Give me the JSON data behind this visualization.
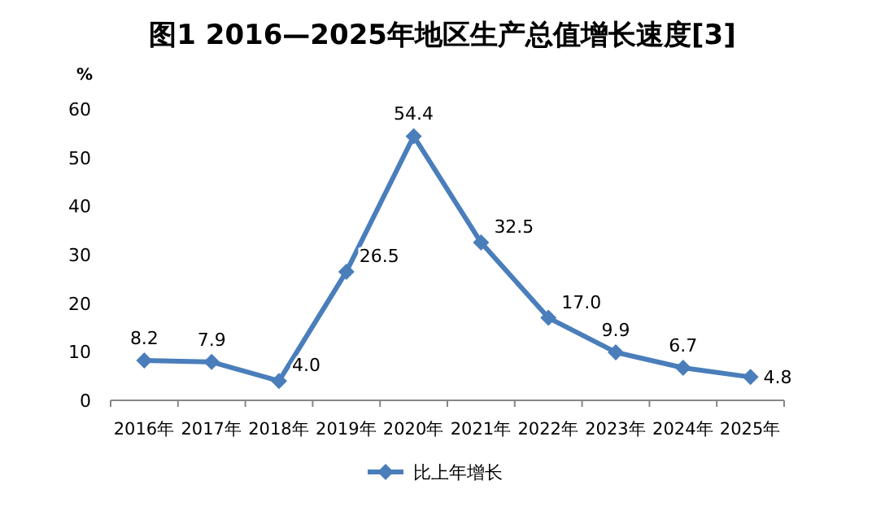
{
  "chart_data": {
    "type": "line",
    "title": "图1 2016—2025年地区生产总值增长速度[3]",
    "ylabel": "%",
    "categories": [
      "2016年",
      "2017年",
      "2018年",
      "2019年",
      "2020年",
      "2021年",
      "2022年",
      "2023年",
      "2024年",
      "2025年"
    ],
    "series": [
      {
        "name": "比上年增长",
        "color": "#4a7ebb",
        "values": [
          8.2,
          7.9,
          4.0,
          26.5,
          54.4,
          32.5,
          17.0,
          9.9,
          6.7,
          4.8
        ],
        "value_labels": [
          "8.2",
          "7.9",
          "4.0",
          "26.5",
          "54.4",
          "32.5",
          "17.0",
          "9.9",
          "6.7",
          "4.8"
        ]
      }
    ],
    "ylim": [
      0,
      60
    ],
    "yticks": [
      0,
      10,
      20,
      30,
      40,
      50,
      60
    ],
    "marker": "diamond",
    "line_style": "solid",
    "legend": "bottom",
    "grid": false
  }
}
